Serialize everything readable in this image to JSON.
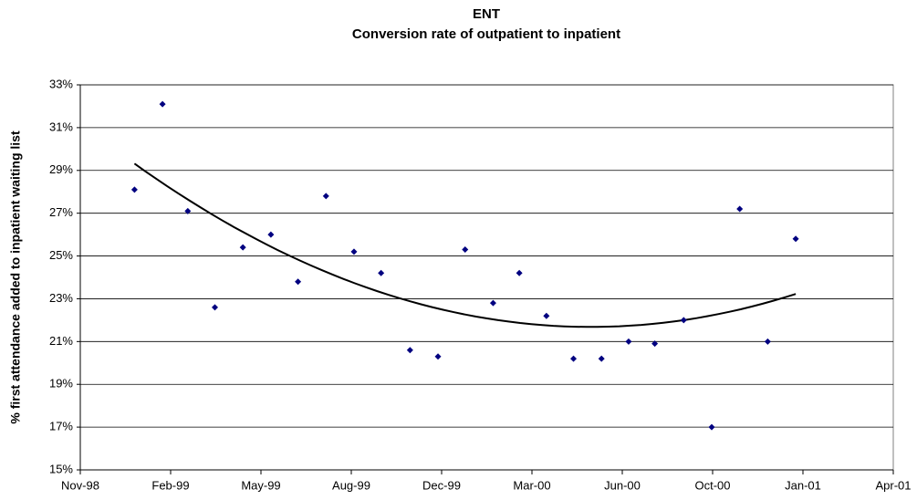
{
  "chart_data": {
    "type": "scatter",
    "title": "ENT",
    "subtitle": "Conversion rate of outpatient to inpatient",
    "y_label": "% first attendance added to inpatient waiting list",
    "color": "#000080",
    "trendline": "polynomial",
    "grid": true,
    "x": [
      36160,
      36191,
      36219,
      36249,
      36280,
      36311,
      36341,
      36372,
      36403,
      36433,
      36465,
      36496,
      36526,
      36557,
      36586,
      36616,
      36646,
      36677,
      36707,
      36736,
      36768,
      36799,
      36830,
      36861,
      36892
    ],
    "values": [
      28.1,
      32.1,
      27.1,
      22.6,
      25.4,
      26.0,
      23.8,
      27.8,
      25.2,
      24.2,
      20.6,
      20.3,
      25.3,
      22.8,
      24.2,
      22.2,
      20.2,
      20.2,
      21.0,
      20.9,
      22.0,
      17.0,
      27.2,
      21.0,
      25.8
    ],
    "xlim": [
      36100,
      37000
    ],
    "xticks": [
      {
        "value": 36100,
        "label": "Nov-98"
      },
      {
        "value": 36200,
        "label": "Feb-99"
      },
      {
        "value": 36300,
        "label": "May-99"
      },
      {
        "value": 36400,
        "label": "Aug-99"
      },
      {
        "value": 36500,
        "label": "Dec-99"
      },
      {
        "value": 36600,
        "label": "Mar-00"
      },
      {
        "value": 36700,
        "label": "Jun-00"
      },
      {
        "value": 36800,
        "label": "Oct-00"
      },
      {
        "value": 36900,
        "label": "Jan-01"
      },
      {
        "value": 37000,
        "label": "Apr-01"
      }
    ],
    "ylim": [
      15,
      33
    ],
    "yticks": [
      {
        "value": 15,
        "label": "15%"
      },
      {
        "value": 17,
        "label": "17%"
      },
      {
        "value": 19,
        "label": "19%"
      },
      {
        "value": 21,
        "label": "21%"
      },
      {
        "value": 23,
        "label": "23%"
      },
      {
        "value": 25,
        "label": "25%"
      },
      {
        "value": 27,
        "label": "27%"
      },
      {
        "value": 29,
        "label": "29%"
      },
      {
        "value": 31,
        "label": "31%"
      },
      {
        "value": 33,
        "label": "33%"
      }
    ]
  }
}
